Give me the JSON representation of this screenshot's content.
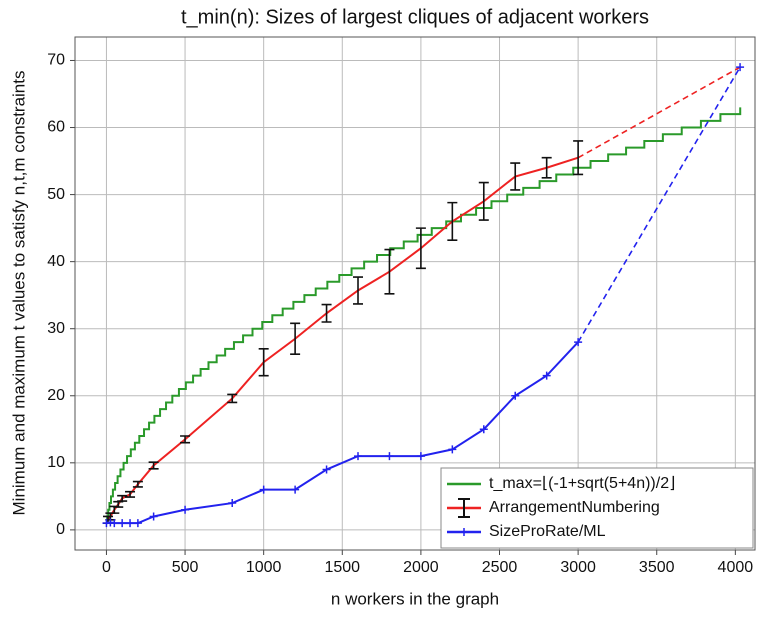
{
  "chart_data": {
    "type": "line",
    "title": "t_min(n): Sizes of largest cliques of adjacent workers",
    "xlabel": "n workers in the graph",
    "ylabel": "Minimum and maximum t values to satisfy n,t,m constraints",
    "xlim": [
      -200,
      4125
    ],
    "ylim": [
      -3,
      73.5
    ],
    "xticks": [
      0,
      500,
      1000,
      1500,
      2000,
      2500,
      3000,
      3500,
      4000
    ],
    "yticks": [
      0,
      10,
      20,
      30,
      40,
      50,
      60,
      70
    ],
    "grid": true,
    "legend": "lower right",
    "series": [
      {
        "name": "t_max=⌊(-1+sqrt(5+4n))/2⌋",
        "color": "#2a9a2a",
        "step": true,
        "x": [
          1,
          5,
          11,
          19,
          29,
          41,
          55,
          71,
          89,
          109,
          131,
          155,
          181,
          209,
          239,
          271,
          305,
          341,
          379,
          419,
          461,
          505,
          551,
          599,
          649,
          701,
          755,
          811,
          869,
          929,
          991,
          1055,
          1121,
          1189,
          1259,
          1331,
          1405,
          1481,
          1559,
          1639,
          1721,
          1805,
          1891,
          1979,
          2069,
          2161,
          2255,
          2351,
          2449,
          2549,
          2651,
          2755,
          2861,
          2969,
          3079,
          3191,
          3305,
          3421,
          3539,
          3659,
          3781,
          3905,
          4031
        ],
        "values": [
          1,
          2,
          3,
          4,
          5,
          6,
          7,
          8,
          9,
          10,
          11,
          12,
          13,
          14,
          15,
          16,
          17,
          18,
          19,
          20,
          21,
          22,
          23,
          24,
          25,
          26,
          27,
          28,
          29,
          30,
          31,
          32,
          33,
          34,
          35,
          36,
          37,
          38,
          39,
          40,
          41,
          42,
          43,
          44,
          45,
          46,
          47,
          48,
          49,
          50,
          51,
          52,
          53,
          54,
          55,
          56,
          57,
          58,
          59,
          60,
          61,
          62,
          63
        ]
      },
      {
        "name": "ArrangementNumbering",
        "color": "#ee2222",
        "error_color": "#111111",
        "dashed_last_segment": true,
        "x": [
          10,
          25,
          50,
          75,
          100,
          150,
          200,
          300,
          500,
          800,
          1000,
          1200,
          1400,
          1600,
          1800,
          2000,
          2200,
          2400,
          2600,
          2800,
          3000,
          4030
        ],
        "values": [
          1.5,
          2,
          3,
          3.8,
          4.7,
          5.3,
          6.8,
          9.6,
          13.5,
          19.6,
          25,
          28.5,
          32.3,
          35.7,
          38.5,
          42,
          46,
          49,
          52.7,
          54,
          55.5,
          69
        ],
        "errors": [
          0.5,
          0.5,
          0.5,
          0.4,
          0.4,
          0.4,
          0.4,
          0.5,
          0.5,
          0.6,
          2,
          2.3,
          1.3,
          2,
          3.3,
          3,
          2.8,
          2.8,
          2,
          1.5,
          2.5,
          null
        ]
      },
      {
        "name": "SizeProRate/ML",
        "color": "#2222ee",
        "marker": "+",
        "dashed_last_segment": true,
        "x": [
          0,
          25,
          50,
          100,
          150,
          200,
          300,
          500,
          800,
          1000,
          1200,
          1400,
          1600,
          1800,
          2000,
          2200,
          2400,
          2600,
          2800,
          3000,
          4030
        ],
        "values": [
          1,
          1.1,
          1,
          1,
          1,
          1,
          2,
          3,
          4,
          6,
          6,
          9,
          11,
          11,
          11,
          12,
          15,
          20,
          23,
          28,
          69
        ]
      }
    ]
  }
}
